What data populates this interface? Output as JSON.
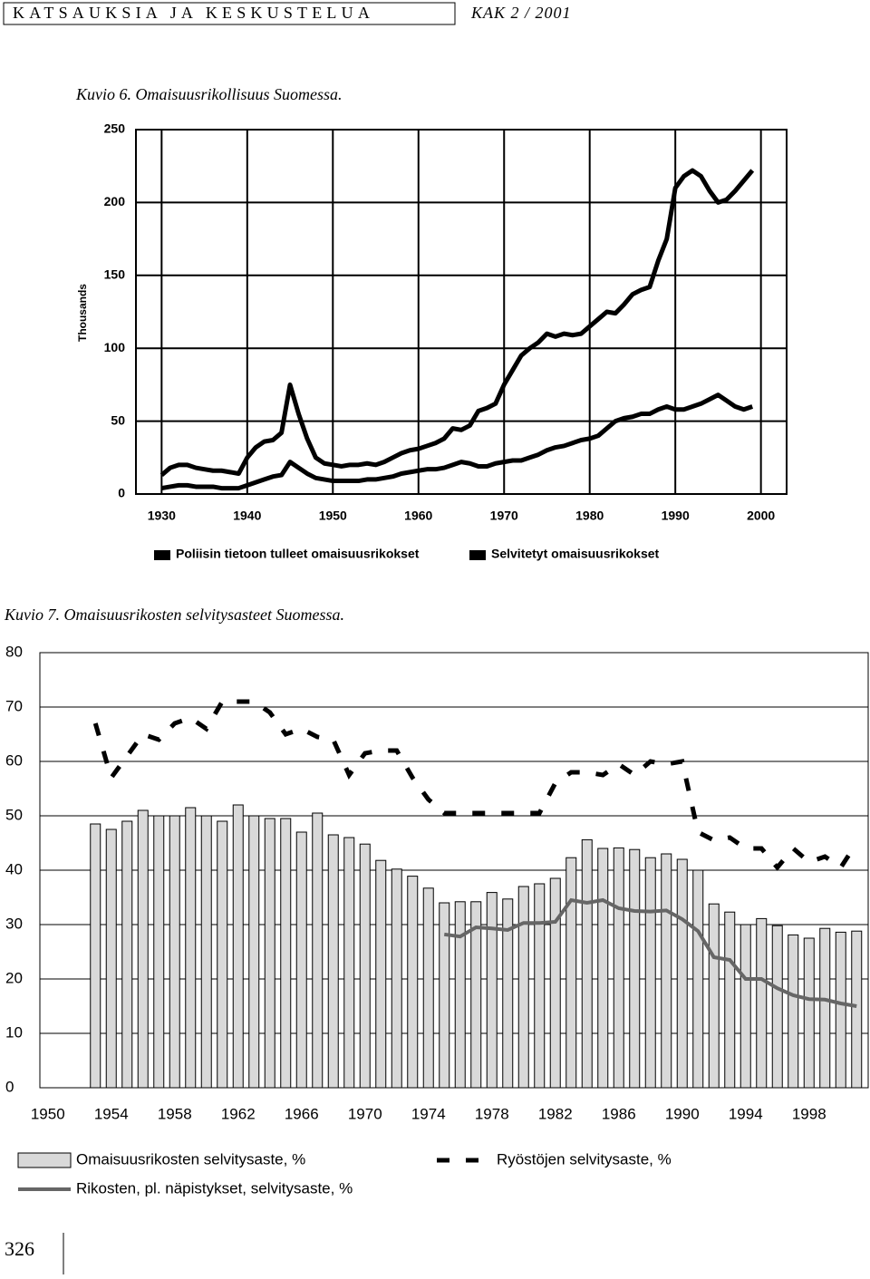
{
  "header": {
    "section": "KATSAUKSIA JA KESKUSTELUA",
    "issue": "KAK 2 / 2001"
  },
  "page_number": "326",
  "chart_data": [
    {
      "type": "line",
      "title": "Kuvio 6. Omaisuusrikollisuus Suomessa.",
      "y_label": "Thousands",
      "x": [
        1930,
        1931,
        1932,
        1933,
        1934,
        1935,
        1936,
        1937,
        1938,
        1939,
        1940,
        1941,
        1942,
        1943,
        1944,
        1945,
        1946,
        1947,
        1948,
        1949,
        1950,
        1951,
        1952,
        1953,
        1954,
        1955,
        1956,
        1957,
        1958,
        1959,
        1960,
        1961,
        1962,
        1963,
        1964,
        1965,
        1966,
        1967,
        1968,
        1969,
        1970,
        1971,
        1972,
        1973,
        1974,
        1975,
        1976,
        1977,
        1978,
        1979,
        1980,
        1981,
        1982,
        1983,
        1984,
        1985,
        1986,
        1987,
        1988,
        1989,
        1990,
        1991,
        1992,
        1993,
        1994,
        1995,
        1996,
        1997,
        1998,
        1999
      ],
      "series": [
        {
          "name": "Poliisin tietoon tulleet omaisuusrikokset",
          "color": "#000000",
          "values": [
            13,
            18,
            20,
            20,
            18,
            17,
            16,
            16,
            15,
            14,
            25,
            32,
            36,
            37,
            42,
            75,
            55,
            38,
            25,
            21,
            20,
            19,
            20,
            20,
            21,
            20,
            22,
            25,
            28,
            30,
            31,
            33,
            35,
            38,
            45,
            44,
            47,
            57,
            59,
            62,
            75,
            85,
            95,
            100,
            104,
            110,
            108,
            110,
            109,
            110,
            115,
            120,
            125,
            124,
            130,
            137,
            140,
            142,
            160,
            175,
            210,
            218,
            222,
            218,
            208,
            200,
            202,
            208,
            215,
            222
          ]
        },
        {
          "name": "Selvitetyt omaisuusrikokset",
          "color": "#000000",
          "values": [
            4,
            5,
            6,
            6,
            5,
            5,
            5,
            4,
            4,
            4,
            6,
            8,
            10,
            12,
            13,
            22,
            18,
            14,
            11,
            10,
            9,
            9,
            9,
            9,
            10,
            10,
            11,
            12,
            14,
            15,
            16,
            17,
            17,
            18,
            20,
            22,
            21,
            19,
            19,
            21,
            22,
            23,
            23,
            25,
            27,
            30,
            32,
            33,
            35,
            37,
            38,
            40,
            45,
            50,
            52,
            53,
            55,
            55,
            58,
            60,
            58,
            58,
            60,
            62,
            65,
            68,
            64,
            60,
            58,
            60
          ]
        }
      ],
      "xlim": [
        1927,
        2003
      ],
      "xticks": [
        1930,
        1940,
        1950,
        1960,
        1970,
        1980,
        1990,
        2000
      ],
      "ylim": [
        0,
        250
      ],
      "yticks": [
        0,
        50,
        100,
        150,
        200,
        250
      ],
      "grid": true
    },
    {
      "type": "bar",
      "title": "Kuvio 7. Omaisuusrikosten selvitysasteet Suomessa.",
      "categories": [
        "1950",
        null,
        null,
        null,
        "1954",
        null,
        null,
        null,
        "1958",
        null,
        null,
        null,
        "1962",
        null,
        null,
        null,
        "1966",
        null,
        null,
        null,
        "1970",
        null,
        null,
        null,
        "1974",
        null,
        null,
        null,
        "1978",
        null,
        null,
        null,
        "1982",
        null,
        null,
        null,
        "1986",
        null,
        null,
        null,
        "1990",
        null,
        null,
        null,
        "1994",
        null,
        null,
        null,
        "1998",
        null,
        null,
        null
      ],
      "series": [
        {
          "name": "Omaisuusrikosten selvitysaste, %",
          "kind": "bar",
          "color": "#d9d9d9",
          "values": [
            null,
            null,
            null,
            48.5,
            47.5,
            49,
            51,
            50,
            50,
            51.5,
            50,
            49,
            52,
            50,
            49.5,
            49.5,
            47,
            50.5,
            46.5,
            46,
            44.8,
            41.8,
            40.2,
            38.9,
            36.7,
            34,
            34.2,
            34.2,
            35.9,
            34.7,
            37,
            37.5,
            38.5,
            42.3,
            45.6,
            44,
            44.1,
            43.8,
            42.3,
            43,
            42,
            40,
            33.8,
            32.3,
            30,
            31.1,
            29.8,
            28.1,
            27.5,
            29.3,
            28.6,
            28.8
          ]
        },
        {
          "name": "Ryöstöjen selvitysaste, %",
          "kind": "line",
          "dashed": true,
          "color": "#000000",
          "values": [
            null,
            null,
            null,
            67,
            57,
            61,
            65,
            64,
            67,
            68,
            66,
            71,
            71,
            71,
            69,
            65,
            66,
            64.5,
            64,
            57.5,
            61.5,
            62,
            62,
            57,
            53,
            50.5,
            50.5,
            50.5,
            50.5,
            50.5,
            50.5,
            50.5,
            56,
            58,
            58,
            57.5,
            59.5,
            57.5,
            60,
            59.5,
            60,
            47,
            45.5,
            46,
            44,
            44,
            40.5,
            44,
            41.5,
            42.5,
            40.5,
            45
          ]
        },
        {
          "name": "Rikosten, pl. näpistykset, selvitysaste, %",
          "kind": "line",
          "dashed": false,
          "color": "#666666",
          "values": [
            null,
            null,
            null,
            null,
            null,
            null,
            null,
            null,
            null,
            null,
            null,
            null,
            null,
            null,
            null,
            null,
            null,
            null,
            null,
            null,
            null,
            null,
            null,
            null,
            null,
            28.2,
            27.8,
            29.5,
            29.3,
            29,
            30.3,
            30.3,
            30.5,
            34.5,
            34,
            34.5,
            33,
            32.5,
            32.4,
            32.6,
            31,
            28.8,
            24,
            23.5,
            20,
            20,
            18.3,
            17,
            16.3,
            16.2,
            15.5,
            15
          ]
        }
      ],
      "ylim": [
        0,
        80
      ],
      "yticks": [
        0,
        10,
        20,
        30,
        40,
        50,
        60,
        70,
        80
      ],
      "grid": true
    }
  ]
}
